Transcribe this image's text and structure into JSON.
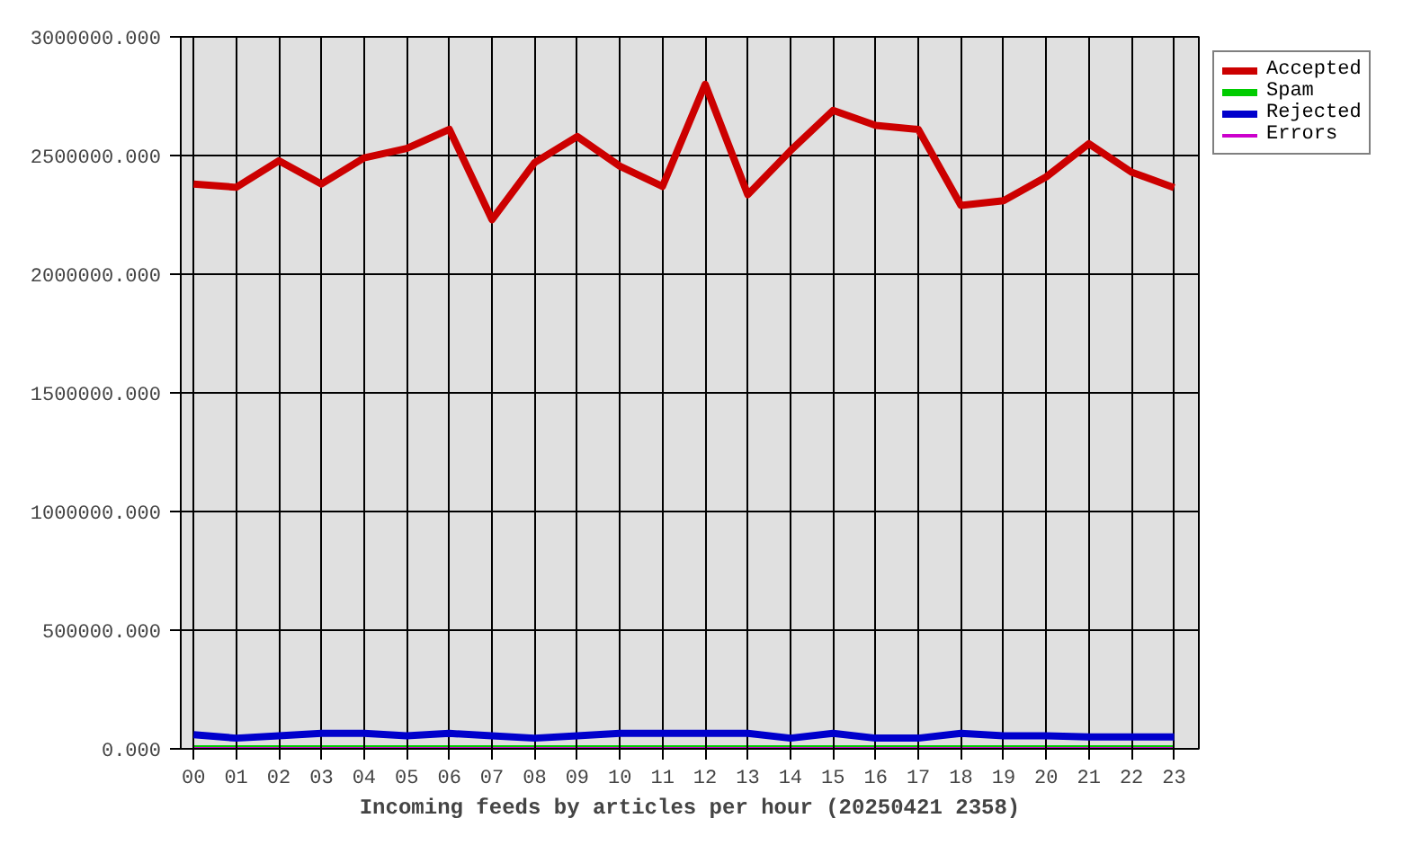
{
  "chart_data": {
    "type": "line",
    "xlabel": "Incoming feeds by articles per hour (20250421 2358)",
    "categories": [
      "00",
      "01",
      "02",
      "03",
      "04",
      "05",
      "06",
      "07",
      "08",
      "09",
      "10",
      "11",
      "12",
      "13",
      "14",
      "15",
      "16",
      "17",
      "18",
      "19",
      "20",
      "21",
      "22",
      "23"
    ],
    "series": [
      {
        "name": "Accepted",
        "color": "#cc0000",
        "values": [
          2380000,
          2366000,
          2478000,
          2380000,
          2490000,
          2530000,
          2610000,
          2230000,
          2470000,
          2580000,
          2455000,
          2370000,
          2800000,
          2335000,
          2520000,
          2690000,
          2627000,
          2610000,
          2290000,
          2310000,
          2410000,
          2550000,
          2430000,
          2365000
        ]
      },
      {
        "name": "Spam",
        "color": "#00cc00",
        "values": [
          0,
          0,
          0,
          0,
          0,
          0,
          0,
          0,
          0,
          0,
          0,
          0,
          0,
          0,
          0,
          0,
          0,
          0,
          0,
          0,
          0,
          0,
          0,
          0
        ]
      },
      {
        "name": "Rejected",
        "color": "#0000cc",
        "values": [
          60000,
          45000,
          55000,
          65000,
          65000,
          55000,
          65000,
          55000,
          45000,
          55000,
          65000,
          65000,
          65000,
          65000,
          45000,
          65000,
          45000,
          45000,
          65000,
          55000,
          55000,
          50000,
          50000,
          50000
        ]
      },
      {
        "name": "Errors",
        "color": "#cc00cc",
        "values": [
          0,
          0,
          0,
          0,
          0,
          0,
          0,
          0,
          0,
          0,
          0,
          0,
          0,
          0,
          0,
          0,
          0,
          0,
          0,
          0,
          0,
          0,
          0,
          0
        ]
      }
    ],
    "ylim": [
      0,
      3000000
    ],
    "yticks": [
      {
        "value": 0,
        "label": "0.000"
      },
      {
        "value": 500000,
        "label": "500000.000"
      },
      {
        "value": 1000000,
        "label": "1000000.000"
      },
      {
        "value": 1500000,
        "label": "1500000.000"
      },
      {
        "value": 2000000,
        "label": "2000000.000"
      },
      {
        "value": 2500000,
        "label": "2500000.000"
      },
      {
        "value": 3000000,
        "label": "3000000.000"
      }
    ],
    "grid": true,
    "legend": "top right",
    "marker": "none",
    "line_style": "solid"
  }
}
